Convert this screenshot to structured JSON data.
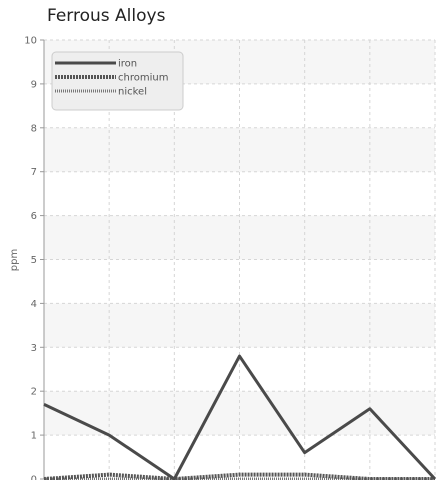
{
  "chart_data": {
    "type": "line",
    "title": "Ferrous Alloys",
    "ylabel": "ppm",
    "xlabel": "",
    "ylim": [
      0,
      10
    ],
    "yticks": [
      0,
      1,
      2,
      3,
      4,
      5,
      6,
      7,
      8,
      9,
      10
    ],
    "x": [
      0,
      1,
      2,
      3,
      4,
      5,
      6
    ],
    "grid": true,
    "legend_position": "top-left",
    "series": [
      {
        "name": "iron",
        "values": [
          1.7,
          1.0,
          0.0,
          2.8,
          0.6,
          1.6,
          0.0
        ],
        "color": "#4a4a4a",
        "style": "solid"
      },
      {
        "name": "chromium",
        "values": [
          0.0,
          0.1,
          0.0,
          0.1,
          0.1,
          0.0,
          0.0
        ],
        "color": "#555555",
        "style": "dotted"
      },
      {
        "name": "nickel",
        "values": [
          0.0,
          0.0,
          0.0,
          0.0,
          0.0,
          0.0,
          0.0
        ],
        "color": "#777777",
        "style": "dashed"
      }
    ]
  }
}
